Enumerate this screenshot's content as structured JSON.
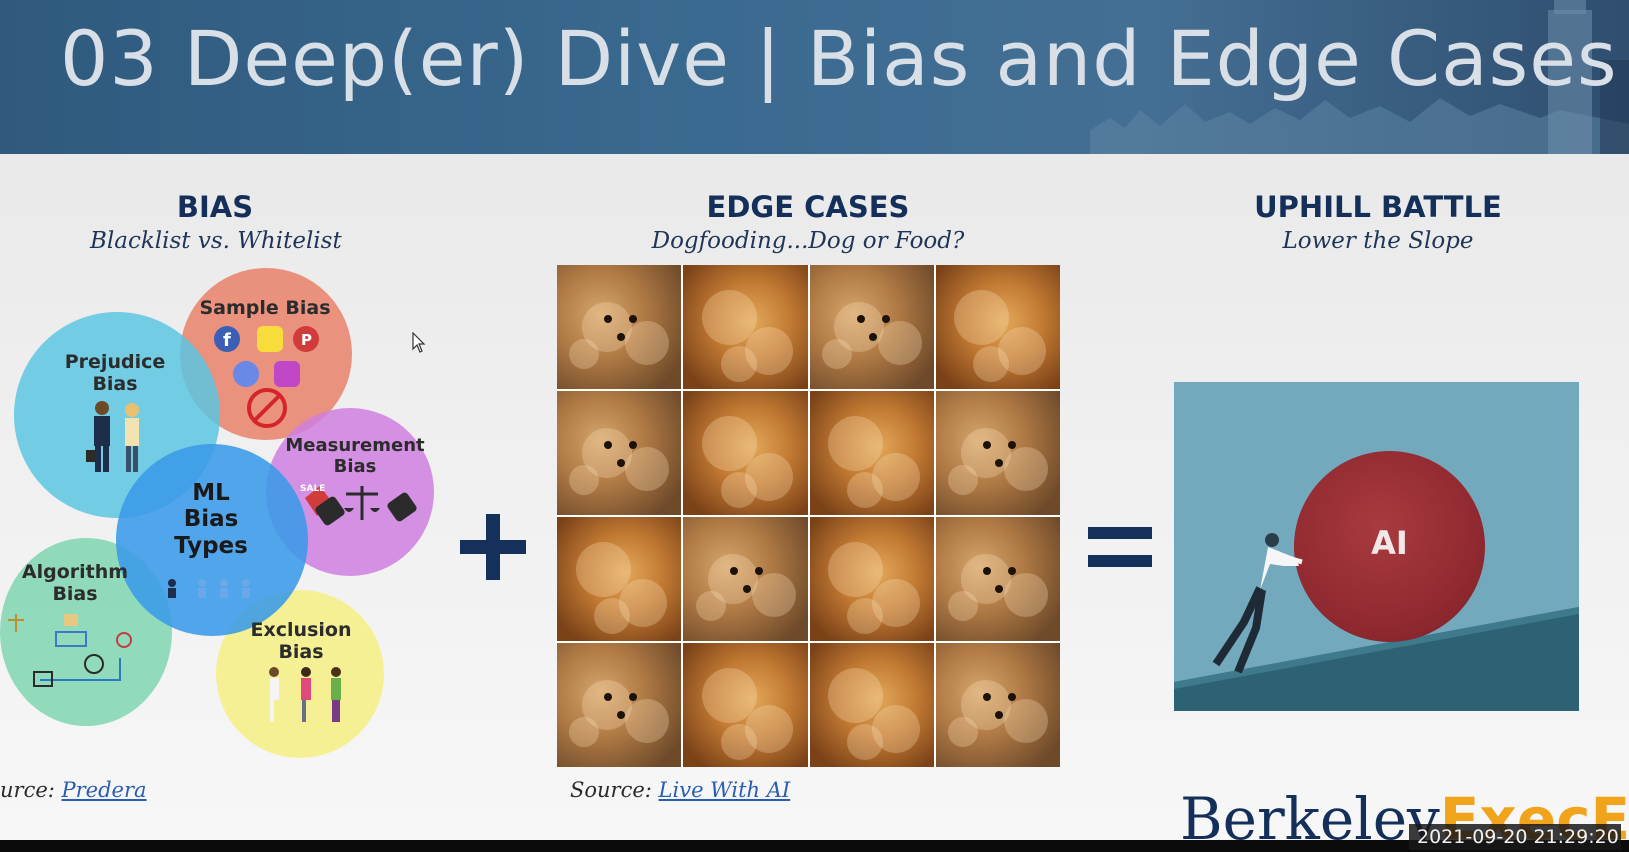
{
  "slide": {
    "title": "03 Deep(er) Dive | Bias and Edge Cases"
  },
  "bias": {
    "heading": "BIAS",
    "subheading": "Blacklist vs. Whitelist",
    "circles": {
      "sample": "Sample Bias",
      "prejudice_1": "Prejudice",
      "prejudice_2": "Bias",
      "measurement_1": "Measurement",
      "measurement_2": "Bias",
      "center_1": "ML",
      "center_2": "Bias",
      "center_3": "Types",
      "algorithm_1": "Algorithm",
      "algorithm_2": "Bias",
      "exclusion_1": "Exclusion",
      "exclusion_2": "Bias",
      "sale_tag": "SALE"
    },
    "source_prefix": "urce: ",
    "source_link": "Predera",
    "colors": {
      "sample": "#e9816a",
      "prejudice": "#5cc6e2",
      "measurement": "#cf7fe0",
      "center": "#3a9ae8",
      "algorithm": "#7fd6b1",
      "exclusion": "#f6f08a"
    }
  },
  "edge_cases": {
    "heading": "EDGE CASES",
    "subheading": "Dogfooding...Dog or Food?",
    "tiles": [
      "dog",
      "food",
      "dog",
      "food",
      "dog",
      "food",
      "food",
      "dog",
      "food",
      "dog",
      "food",
      "dog",
      "dog",
      "food",
      "food",
      "dog"
    ],
    "source_prefix": "Source: ",
    "source_link": "Live With AI"
  },
  "uphill": {
    "heading": "UPHILL BATTLE",
    "subheading": "Lower the Slope",
    "ball_label": "AI"
  },
  "operators": {
    "plus": "+",
    "equals": "="
  },
  "branding": {
    "logo_main": "Berkeley",
    "logo_accent": "ExecEd",
    "timestamp": "2021-09-20  21:29:20"
  }
}
